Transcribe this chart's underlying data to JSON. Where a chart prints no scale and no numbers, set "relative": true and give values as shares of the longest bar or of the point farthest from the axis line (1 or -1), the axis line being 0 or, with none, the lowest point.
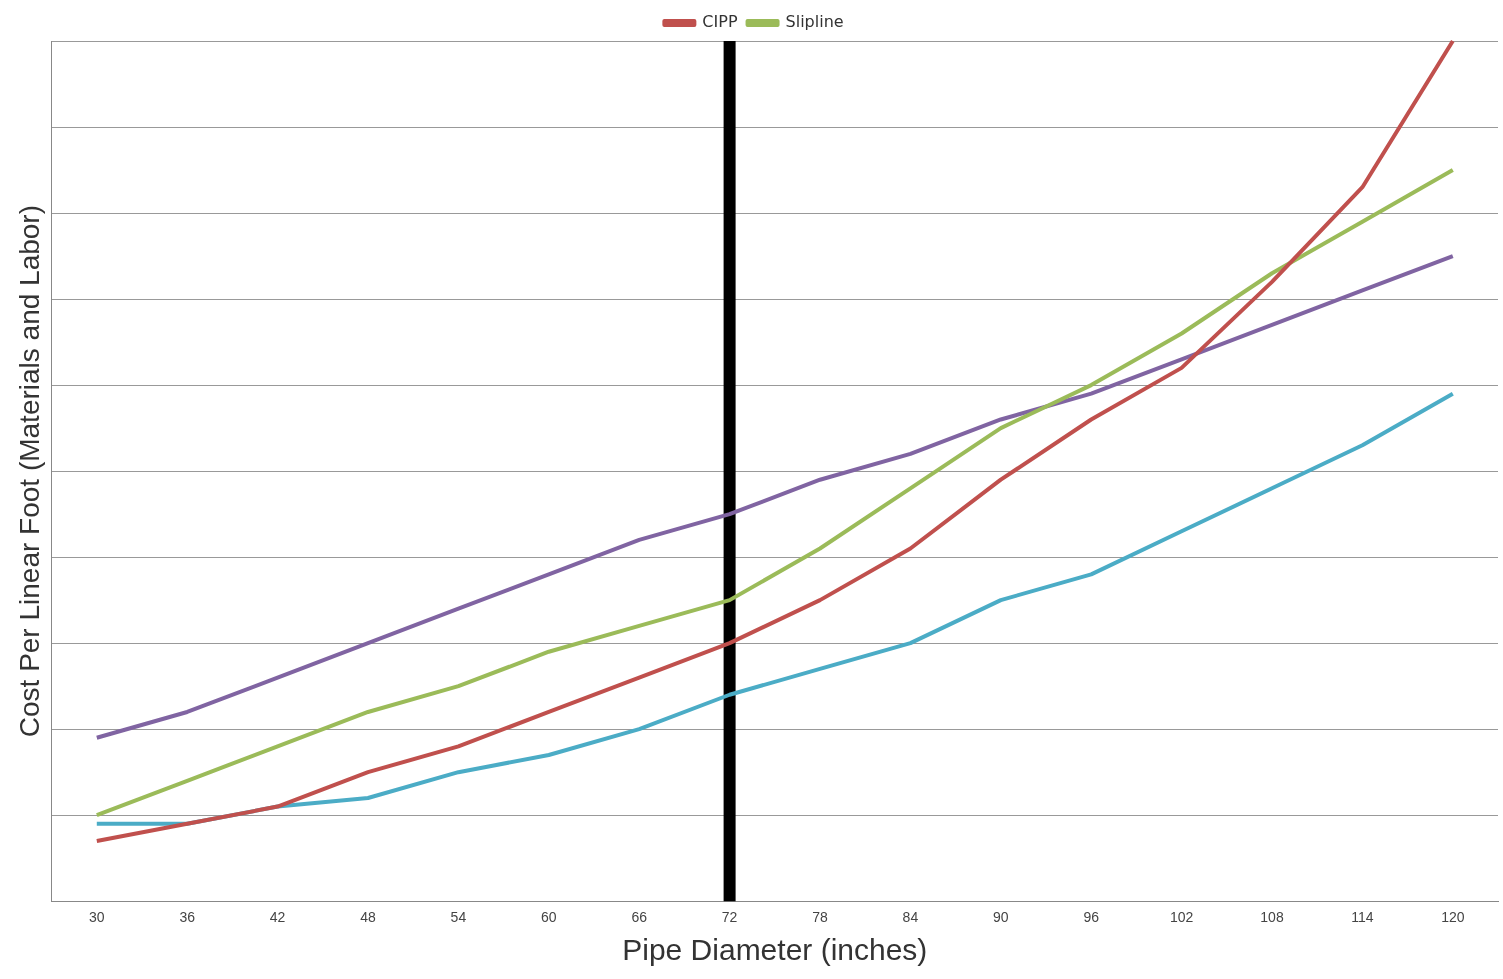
{
  "chart_data": {
    "type": "line",
    "xlabel": "Pipe Diameter (inches)",
    "ylabel": "Cost Per Linear Foot (Materials and Labor)",
    "categories": [
      "30",
      "36",
      "42",
      "48",
      "54",
      "60",
      "66",
      "72",
      "78",
      "84",
      "90",
      "96",
      "102",
      "108",
      "114",
      "120"
    ],
    "relative": true,
    "grid": "y",
    "legend": "top",
    "marker": "none",
    "line_style": "solid",
    "ref_lines": [
      {
        "axis": "x",
        "value": "72",
        "color": "#000000"
      }
    ],
    "series": [
      {
        "name": "CIPP",
        "color": "#c0504d",
        "values": [
          0.07,
          0.09,
          0.11,
          0.15,
          0.18,
          0.22,
          0.26,
          0.3,
          0.35,
          0.41,
          0.49,
          0.56,
          0.62,
          0.72,
          0.83,
          1
        ]
      },
      {
        "name": "Slipline",
        "color": "#9bbb59",
        "values": [
          0.1,
          0.14,
          0.18,
          0.22,
          0.25,
          0.29,
          0.32,
          0.35,
          0.41,
          0.48,
          0.55,
          0.6,
          0.66,
          0.73,
          0.79,
          0.85
        ]
      },
      {
        "color": "#8064a2",
        "values": [
          0.19,
          0.22,
          0.26,
          0.3,
          0.34,
          0.38,
          0.42,
          0.45,
          0.49,
          0.52,
          0.56,
          0.59,
          0.63,
          0.67,
          0.71,
          0.75
        ]
      },
      {
        "color": "#4bacc6",
        "values": [
          0.09,
          0.09,
          0.11,
          0.12,
          0.15,
          0.17,
          0.2,
          0.24,
          0.27,
          0.3,
          0.35,
          0.38,
          0.43,
          0.48,
          0.53,
          0.59
        ]
      }
    ]
  }
}
